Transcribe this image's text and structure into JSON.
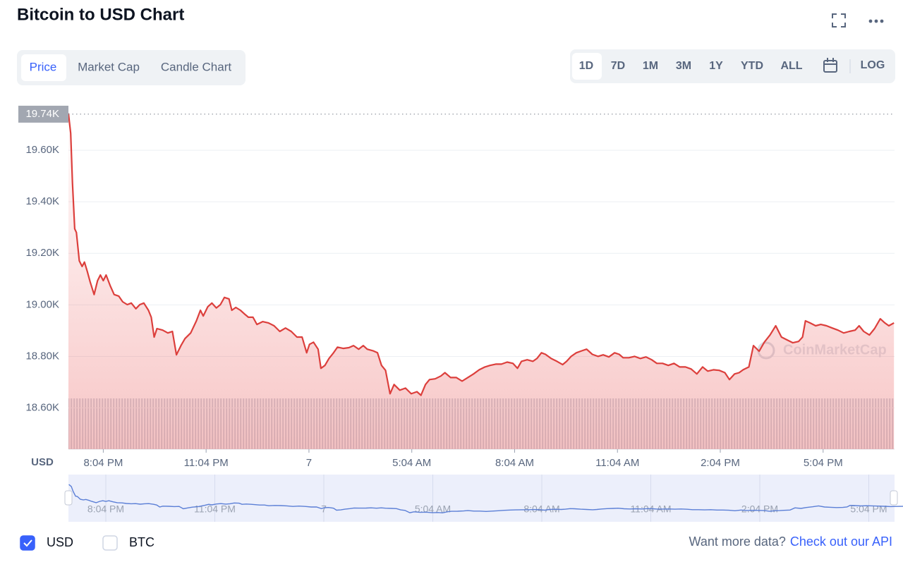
{
  "tabs": [
    "Price",
    "Market Cap",
    "Candle Chart"
  ],
  "ranges": [
    "1D",
    "7D",
    "1M",
    "3M",
    "1Y",
    "YTD",
    "ALL"
  ],
  "log_label": "LOG",
  "currency_toggles": [
    {
      "label": "USD",
      "checked": true
    },
    {
      "label": "BTC",
      "checked": false
    }
  ],
  "footer": {
    "question": "Want more data?",
    "link": "Check out our API"
  },
  "chart_data": {
    "type": "line",
    "title": "Bitcoin to USD Chart",
    "y_unit_label": "USD",
    "watermark": "CoinMarketCap",
    "color": "#dc3f3c",
    "grid": true,
    "reference": {
      "value": 19740,
      "label": "19.74K"
    },
    "xlim": [
      1143,
      2589
    ],
    "xticks": [
      {
        "value": 1204,
        "label": "8:04 PM"
      },
      {
        "value": 1384,
        "label": "11:04 PM"
      },
      {
        "value": 1564,
        "label": "7"
      },
      {
        "value": 1744,
        "label": "5:04 AM"
      },
      {
        "value": 1924,
        "label": "8:04 AM"
      },
      {
        "value": 2104,
        "label": "11:04 AM"
      },
      {
        "value": 2284,
        "label": "2:04 PM"
      },
      {
        "value": 2464,
        "label": "5:04 PM"
      }
    ],
    "ylim": [
      18440,
      19800
    ],
    "yticks": [
      {
        "value": 18600,
        "label": "18.60K"
      },
      {
        "value": 18800,
        "label": "18.80K"
      },
      {
        "value": 19000,
        "label": "19.00K"
      },
      {
        "value": 19200,
        "label": "19.20K"
      },
      {
        "value": 19400,
        "label": "19.40K"
      },
      {
        "value": 19600,
        "label": "19.60K"
      }
    ],
    "x": [
      1143,
      1147,
      1150,
      1154,
      1157,
      1162,
      1167,
      1171,
      1176,
      1181,
      1188,
      1194,
      1199,
      1204,
      1209,
      1216,
      1223,
      1231,
      1238,
      1246,
      1253,
      1261,
      1268,
      1275,
      1283,
      1288,
      1293,
      1298,
      1308,
      1317,
      1325,
      1332,
      1340,
      1347,
      1357,
      1367,
      1374,
      1379,
      1387,
      1394,
      1402,
      1409,
      1416,
      1424,
      1429,
      1436,
      1444,
      1451,
      1458,
      1466,
      1473,
      1483,
      1493,
      1503,
      1513,
      1523,
      1533,
      1543,
      1552,
      1560,
      1565,
      1572,
      1580,
      1585,
      1592,
      1599,
      1607,
      1614,
      1624,
      1634,
      1642,
      1651,
      1659,
      1666,
      1676,
      1684,
      1691,
      1698,
      1706,
      1713,
      1723,
      1733,
      1743,
      1753,
      1760,
      1768,
      1775,
      1785,
      1795,
      1802,
      1812,
      1822,
      1832,
      1842,
      1852,
      1862,
      1872,
      1881,
      1891,
      1901,
      1911,
      1921,
      1929,
      1936,
      1946,
      1956,
      1963,
      1971,
      1978,
      1988,
      1998,
      2008,
      2015,
      2023,
      2032,
      2042,
      2050,
      2060,
      2070,
      2079,
      2089,
      2099,
      2107,
      2114,
      2124,
      2134,
      2144,
      2154,
      2164,
      2173,
      2183,
      2193,
      2203,
      2213,
      2223,
      2233,
      2243,
      2253,
      2262,
      2272,
      2282,
      2292,
      2300,
      2309,
      2317,
      2324,
      2334,
      2342,
      2352,
      2361,
      2371,
      2381,
      2391,
      2401,
      2411,
      2421,
      2428,
      2433,
      2441,
      2451,
      2460,
      2470,
      2480,
      2490,
      2500,
      2510,
      2520,
      2527,
      2535,
      2545,
      2554,
      2564,
      2572,
      2579,
      2588
    ],
    "values": [
      19743,
      19666,
      19474,
      19295,
      19281,
      19171,
      19149,
      19166,
      19130,
      19089,
      19040,
      19094,
      19116,
      19094,
      19116,
      19075,
      19040,
      19034,
      19012,
      19001,
      19007,
      18985,
      19001,
      19007,
      18979,
      18952,
      18875,
      18908,
      18902,
      18891,
      18897,
      18806,
      18842,
      18869,
      18891,
      18938,
      18979,
      18957,
      18993,
      19007,
      18988,
      19001,
      19029,
      19023,
      18979,
      18990,
      18979,
      18965,
      18952,
      18952,
      18924,
      18935,
      18930,
      18919,
      18897,
      18910,
      18897,
      18875,
      18875,
      18814,
      18847,
      18855,
      18828,
      18754,
      18765,
      18792,
      18814,
      18836,
      18831,
      18834,
      18842,
      18828,
      18842,
      18828,
      18822,
      18814,
      18765,
      18746,
      18655,
      18691,
      18669,
      18677,
      18655,
      18663,
      18649,
      18691,
      18710,
      18713,
      18724,
      18737,
      18718,
      18718,
      18704,
      18718,
      18732,
      18748,
      18759,
      18765,
      18770,
      18770,
      18778,
      18773,
      18754,
      18781,
      18787,
      18781,
      18792,
      18814,
      18808,
      18792,
      18781,
      18768,
      18781,
      18800,
      18814,
      18822,
      18828,
      18808,
      18800,
      18806,
      18798,
      18814,
      18808,
      18795,
      18795,
      18800,
      18792,
      18798,
      18787,
      18773,
      18773,
      18765,
      18773,
      18759,
      18759,
      18751,
      18732,
      18759,
      18743,
      18748,
      18746,
      18737,
      18710,
      18732,
      18737,
      18748,
      18759,
      18842,
      18820,
      18855,
      18883,
      18919,
      18875,
      18864,
      18853,
      18858,
      18875,
      18938,
      18930,
      18919,
      18924,
      18919,
      18910,
      18902,
      18891,
      18897,
      18902,
      18919,
      18897,
      18883,
      18908,
      18946,
      18930,
      18919,
      18930
    ]
  }
}
